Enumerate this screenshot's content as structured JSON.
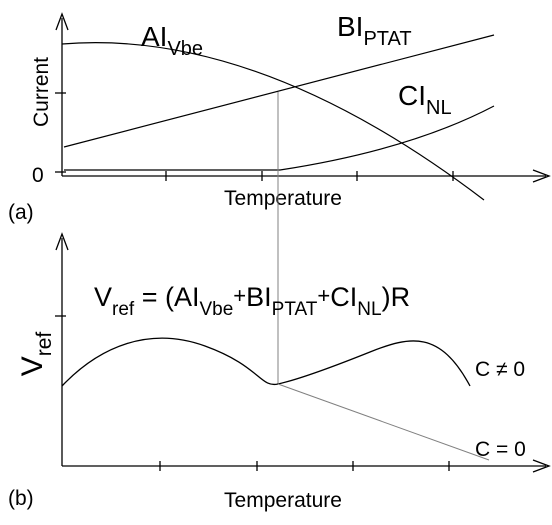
{
  "top": {
    "y_label": "Current",
    "x_label": "Temperature",
    "y_zero": "0",
    "panel_label": "(a)",
    "curve_a": {
      "base": "AI",
      "sub": "Vbe"
    },
    "curve_b": {
      "base": "BI",
      "sub": "PTAT"
    },
    "curve_c": {
      "base": "CI",
      "sub": "NL"
    }
  },
  "bottom": {
    "y_label": {
      "base": "V",
      "sub": "ref"
    },
    "x_label": "Temperature",
    "panel_label": "(b)",
    "equation": {
      "lhs": {
        "base": "V",
        "sub": "ref"
      },
      "eq": " = (",
      "t1": {
        "base": "AI",
        "sub": "Vbe"
      },
      "plus1": "+",
      "t2": {
        "base": "BI",
        "sub": "PTAT"
      },
      "plus2": "+",
      "t3": {
        "base": "CI",
        "sub": "NL"
      },
      "tail": ")R"
    },
    "label_c_nonzero": "C ≠ 0",
    "label_c_zero": "C = 0"
  },
  "colors": {
    "ink": "#000000",
    "guide": "#808080"
  }
}
